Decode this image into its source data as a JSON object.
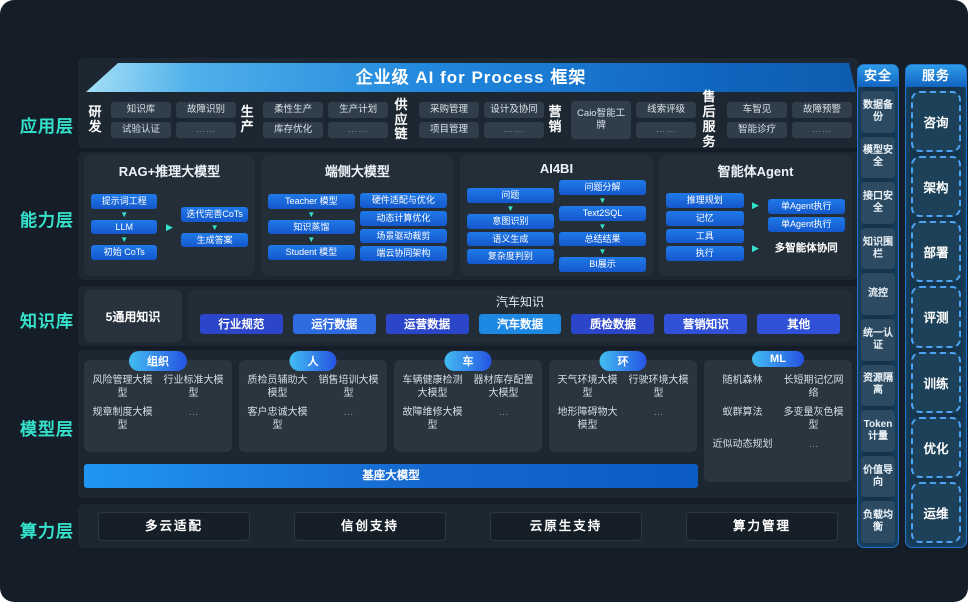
{
  "header": {
    "title": "企业级 AI for Process 框架"
  },
  "layers": [
    "应用层",
    "能力层",
    "知识库",
    "模型层",
    "算力层"
  ],
  "icons": {
    "arrow_down": "▼",
    "arrow_right": "▶"
  },
  "app": {
    "groups": [
      {
        "label": "研发",
        "cols": [
          [
            "知识库",
            "试验认证"
          ],
          [
            "故障识别",
            "……"
          ]
        ]
      },
      {
        "label": "生产",
        "cols": [
          [
            "柔性生产",
            "库存优化"
          ],
          [
            "生产计划",
            "……"
          ]
        ]
      },
      {
        "label": "供应链",
        "cols": [
          [
            "采购管理",
            "项目管理"
          ],
          [
            "设计及协同",
            "……"
          ]
        ]
      },
      {
        "label": "营销",
        "cols": [
          [
            "Caio智能工牌"
          ],
          [
            "线索评级",
            "……"
          ]
        ]
      },
      {
        "label": "售后服务",
        "cols": [
          [
            "车智见",
            "智能诊疗"
          ],
          [
            "故障预警",
            "……"
          ]
        ]
      }
    ]
  },
  "capability": {
    "boxes": [
      {
        "title": "RAG+推理大模型",
        "left": [
          "提示词工程",
          "LLM",
          "初始 CoTs"
        ],
        "left_arrows": [
          0,
          1
        ],
        "right": [
          "迭代完善CoTs",
          "生成答案"
        ],
        "right_arrows": [
          0
        ],
        "connectors": 1,
        "note": ""
      },
      {
        "title": "端侧大模型",
        "left": [
          "Teacher 模型",
          "知识蒸馏",
          "Student 模型"
        ],
        "left_arrows": [
          0,
          1
        ],
        "right": [
          "硬件适配与优化",
          "动态计算优化",
          "场景驱动裁剪",
          "端云协同架构"
        ],
        "right_arrows": [],
        "connectors": 0,
        "note": ""
      },
      {
        "title": "AI4BI",
        "left": [
          "问题",
          "意图识别",
          "语义生成",
          "复杂度判别"
        ],
        "left_arrows": [
          0
        ],
        "right": [
          "问题分解",
          "Text2SQL",
          "总结结果",
          "BI展示"
        ],
        "right_arrows": [
          0,
          1,
          2
        ],
        "connectors": 0,
        "note": ""
      },
      {
        "title": "智能体Agent",
        "left": [
          "推理规划",
          "记忆",
          "工具",
          "执行"
        ],
        "left_arrows": [],
        "right": [
          "单Agent执行",
          "单Agent执行"
        ],
        "right_arrows": [],
        "connectors": 2,
        "note": "多智能体协同"
      }
    ]
  },
  "knowledge": {
    "general_label": "5通用知识",
    "auto_title": "汽车知识",
    "buttons": [
      {
        "label": "行业规范",
        "color": "#2b46c8"
      },
      {
        "label": "运行数据",
        "color": "#2f6be0"
      },
      {
        "label": "运营数据",
        "color": "#2b46c8"
      },
      {
        "label": "汽车数据",
        "color": "#1e88e5"
      },
      {
        "label": "质检数据",
        "color": "#2b46c8"
      },
      {
        "label": "营销知识",
        "color": "#3050d8"
      },
      {
        "label": "其他",
        "color": "#3050d8"
      }
    ]
  },
  "model": {
    "base_bar": "基座大模型",
    "groups": [
      {
        "pill": "组织",
        "items": [
          "风险管理大模型",
          "行业标准大模型",
          "规章制度大模型",
          "…"
        ]
      },
      {
        "pill": "人",
        "items": [
          "质检员辅助大模型",
          "销售培训大模型",
          "客户忠诚大模型",
          "…"
        ]
      },
      {
        "pill": "车",
        "items": [
          "车辆健康检测大模型",
          "器材库存配置大模型",
          "故障维修大模型",
          "…"
        ]
      },
      {
        "pill": "环",
        "items": [
          "天气环境大模型",
          "行驶环境大模型",
          "地形障碍物大模型",
          "…"
        ]
      },
      {
        "pill": "ML",
        "items": [
          "随机森林",
          "长短期记忆网络",
          "蚁群算法",
          "多变量灰色模型",
          "近似动态规划",
          "…"
        ]
      }
    ]
  },
  "compute": {
    "items": [
      "多云适配",
      "信创支持",
      "云原生支持",
      "算力管理"
    ]
  },
  "security": {
    "title": "安全",
    "items": [
      "数据备份",
      "模型安全",
      "接口安全",
      "知识围栏",
      "流控",
      "统一认证",
      "资源隔离",
      "Token计量",
      "价值导向",
      "负载均衡"
    ]
  },
  "service": {
    "title": "服务",
    "items": [
      "咨询",
      "架构",
      "部署",
      "评测",
      "训练",
      "优化",
      "运维"
    ]
  },
  "colors": {
    "accent_teal": "#35e2cc",
    "capability_button": "#1b74e3",
    "banner_blue": "#2187dd",
    "base_bar_blue": "#2196f3",
    "side_rail_border": "#2273cc"
  }
}
